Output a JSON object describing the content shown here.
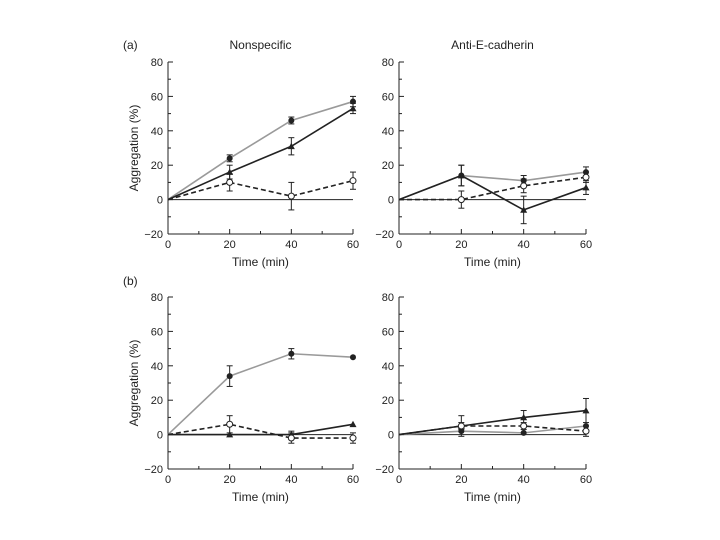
{
  "figure": {
    "panel_labels": [
      "(a)",
      "(b)"
    ],
    "column_titles": [
      "Nonspecific",
      "Anti-E-cadherin"
    ]
  },
  "colors": {
    "gray_series": "#9a9a9a",
    "black_series": "#222222",
    "axis": "#222222"
  },
  "chart_data": [
    {
      "type": "line",
      "row": "a",
      "title": "Nonspecific",
      "xlabel": "Time (min)",
      "ylabel": "Aggregation (%)",
      "xlim": [
        0,
        60
      ],
      "ylim": [
        -20,
        80
      ],
      "xticks": [
        0,
        20,
        40,
        60
      ],
      "yticks": [
        -20,
        0,
        20,
        40,
        60,
        80
      ],
      "series": [
        {
          "name": "gray-filled-circle",
          "color": "#9a9a9a",
          "dash": false,
          "marker": "filled-circle",
          "x": [
            0,
            20,
            40,
            60
          ],
          "y": [
            0,
            24,
            46,
            57
          ],
          "err": [
            0,
            2,
            2,
            3
          ]
        },
        {
          "name": "black-filled-triangle",
          "color": "#222222",
          "dash": false,
          "marker": "filled-triangle",
          "x": [
            0,
            20,
            40,
            60
          ],
          "y": [
            0,
            16,
            31,
            53
          ],
          "err": [
            0,
            4,
            5,
            3
          ]
        },
        {
          "name": "dashed-open-circle",
          "color": "#222222",
          "dash": true,
          "marker": "open-circle",
          "x": [
            0,
            20,
            40,
            60
          ],
          "y": [
            0,
            10,
            2,
            11
          ],
          "err": [
            0,
            5,
            8,
            5
          ]
        }
      ]
    },
    {
      "type": "line",
      "row": "a",
      "title": "Anti-E-cadherin",
      "xlabel": "Time (min)",
      "ylabel": "",
      "xlim": [
        0,
        60
      ],
      "ylim": [
        -20,
        80
      ],
      "xticks": [
        0,
        20,
        40,
        60
      ],
      "yticks": [
        -20,
        0,
        20,
        40,
        60,
        80
      ],
      "series": [
        {
          "name": "gray-filled-circle",
          "color": "#9a9a9a",
          "dash": false,
          "marker": "filled-circle",
          "x": [
            0,
            20,
            40,
            60
          ],
          "y": [
            0,
            14,
            11,
            16
          ],
          "err": [
            0,
            6,
            3,
            3
          ]
        },
        {
          "name": "black-filled-triangle",
          "color": "#222222",
          "dash": false,
          "marker": "filled-triangle",
          "x": [
            0,
            20,
            40,
            60
          ],
          "y": [
            0,
            14,
            -6,
            7
          ],
          "err": [
            0,
            6,
            8,
            4
          ]
        },
        {
          "name": "dashed-open-circle",
          "color": "#222222",
          "dash": true,
          "marker": "open-circle",
          "x": [
            0,
            20,
            40,
            60
          ],
          "y": [
            0,
            0,
            8,
            13
          ],
          "err": [
            0,
            5,
            4,
            3
          ]
        }
      ]
    },
    {
      "type": "line",
      "row": "b",
      "title": "",
      "xlabel": "Time (min)",
      "ylabel": "Aggregation (%)",
      "xlim": [
        0,
        60
      ],
      "ylim": [
        -20,
        80
      ],
      "xticks": [
        0,
        20,
        40,
        60
      ],
      "yticks": [
        -20,
        0,
        20,
        40,
        60,
        80
      ],
      "series": [
        {
          "name": "gray-filled-circle",
          "color": "#9a9a9a",
          "dash": false,
          "marker": "filled-circle",
          "x": [
            0,
            20,
            40,
            60
          ],
          "y": [
            0,
            34,
            47,
            45
          ],
          "err": [
            0,
            6,
            3,
            0
          ]
        },
        {
          "name": "black-filled-triangle",
          "color": "#222222",
          "dash": false,
          "marker": "filled-triangle",
          "x": [
            0,
            20,
            40,
            60
          ],
          "y": [
            0,
            0,
            0,
            6
          ],
          "err": [
            0,
            0,
            2,
            0
          ]
        },
        {
          "name": "dashed-open-circle",
          "color": "#222222",
          "dash": true,
          "marker": "open-circle",
          "x": [
            0,
            20,
            40,
            60
          ],
          "y": [
            0,
            6,
            -2,
            -2
          ],
          "err": [
            0,
            5,
            3,
            3
          ]
        }
      ]
    },
    {
      "type": "line",
      "row": "b",
      "title": "",
      "xlabel": "Time (min)",
      "ylabel": "",
      "xlim": [
        0,
        60
      ],
      "ylim": [
        -20,
        80
      ],
      "xticks": [
        0,
        20,
        40,
        60
      ],
      "yticks": [
        -20,
        0,
        20,
        40,
        60,
        80
      ],
      "series": [
        {
          "name": "gray-filled-circle",
          "color": "#9a9a9a",
          "dash": false,
          "marker": "filled-circle",
          "x": [
            0,
            20,
            40,
            60
          ],
          "y": [
            0,
            2,
            1,
            5
          ],
          "err": [
            0,
            0,
            0,
            0
          ]
        },
        {
          "name": "black-filled-triangle",
          "color": "#222222",
          "dash": false,
          "marker": "filled-triangle",
          "x": [
            0,
            20,
            40,
            60
          ],
          "y": [
            0,
            5,
            10,
            14
          ],
          "err": [
            0,
            6,
            4,
            7
          ]
        },
        {
          "name": "dashed-open-circle",
          "color": "#222222",
          "dash": true,
          "marker": "open-circle",
          "x": [
            0,
            20,
            40,
            60
          ],
          "y": [
            0,
            5,
            5,
            2
          ],
          "err": [
            0,
            2,
            2,
            3
          ]
        }
      ]
    }
  ]
}
